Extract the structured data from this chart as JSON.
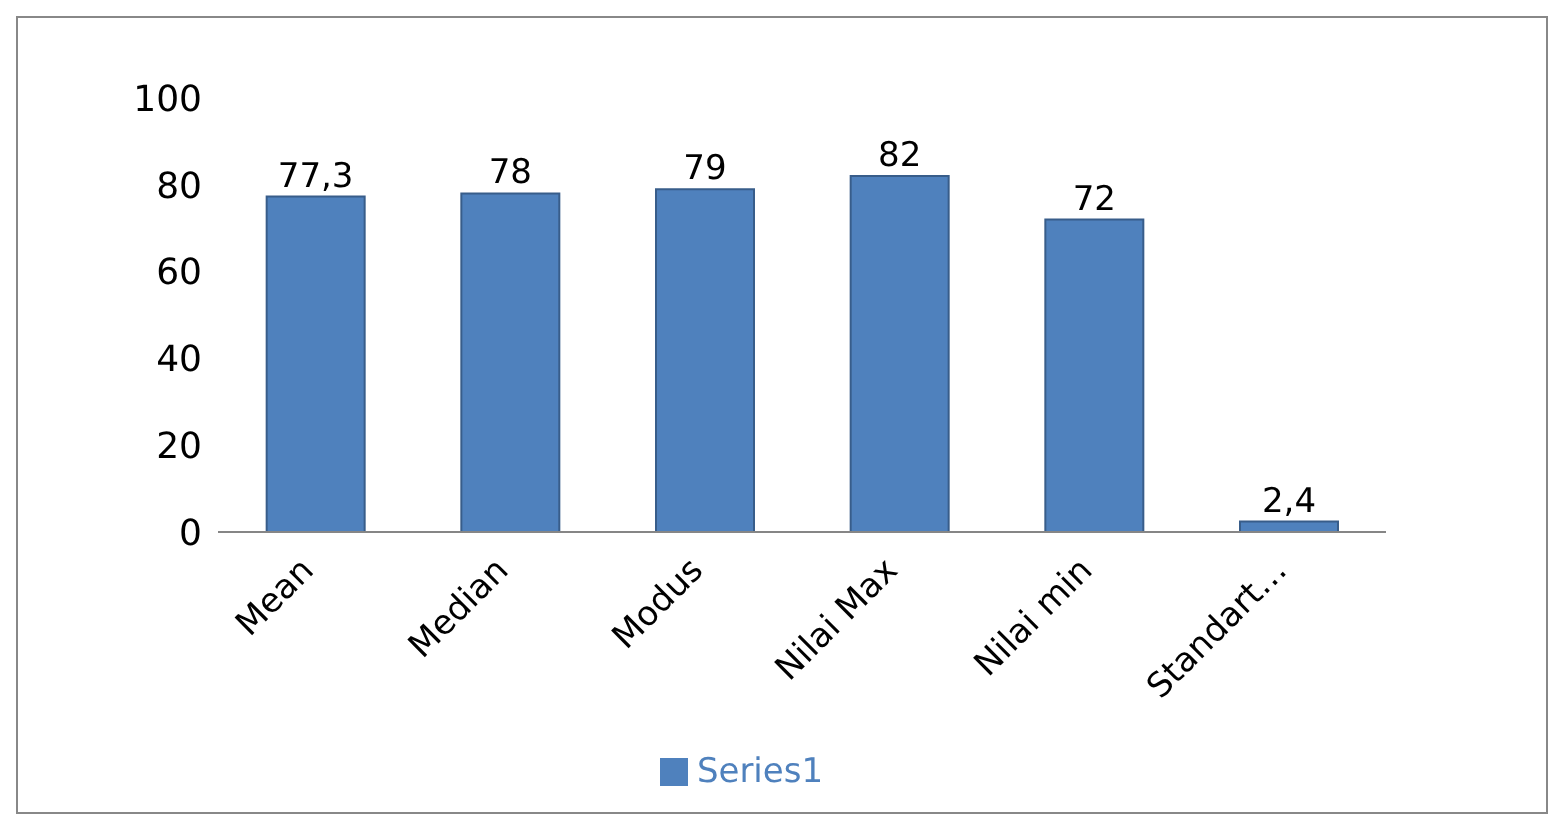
{
  "chart_data": {
    "type": "bar",
    "categories": [
      "Mean",
      "Median",
      "Modus",
      "Nilai Max",
      "Nilai min",
      "Standart…"
    ],
    "series": [
      {
        "name": "Series1",
        "color": "#4f81bd",
        "values": [
          77.3,
          78,
          79,
          82,
          72,
          2.4
        ],
        "value_labels": [
          "77,3",
          "78",
          "79",
          "82",
          "72",
          "2,4"
        ]
      }
    ],
    "ylim": [
      0,
      100
    ],
    "yticks": [
      0,
      20,
      40,
      60,
      80,
      100
    ],
    "legend": "bottom"
  }
}
